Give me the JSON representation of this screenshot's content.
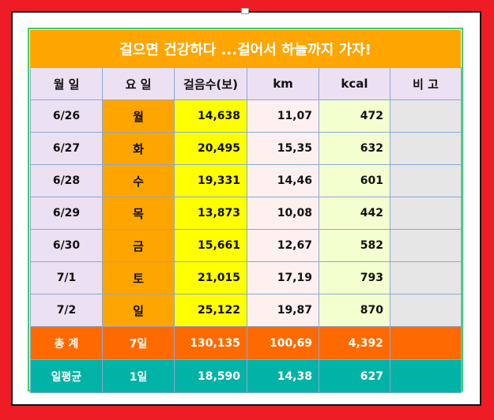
{
  "title": "걸으면 건강하다 ...걸어서 하늘까지 가자!",
  "headers": [
    "월 일",
    "요 일",
    "걸음수(보)",
    "km",
    "kcal",
    "비 고"
  ],
  "rows": [
    {
      "date": "6/26",
      "day": "월",
      "steps": "14,638",
      "km": "11,07",
      "kcal": "472",
      "note": ""
    },
    {
      "date": "6/27",
      "day": "화",
      "steps": "20,495",
      "km": "15,35",
      "kcal": "632",
      "note": ""
    },
    {
      "date": "6/28",
      "day": "수",
      "steps": "19,331",
      "km": "14,46",
      "kcal": "601",
      "note": ""
    },
    {
      "date": "6/29",
      "day": "목",
      "steps": "13,873",
      "km": "10,08",
      "kcal": "442",
      "note": ""
    },
    {
      "date": "6/30",
      "day": "금",
      "steps": "15,661",
      "km": "12,67",
      "kcal": "582",
      "note": ""
    },
    {
      "date": "7/1",
      "day": "토",
      "steps": "21,015",
      "km": "17,19",
      "kcal": "793",
      "note": ""
    },
    {
      "date": "7/2",
      "day": "일",
      "steps": "25,122",
      "km": "19,87",
      "kcal": "870",
      "note": ""
    }
  ],
  "total": {
    "label": "총 계",
    "days": "7일",
    "steps": "130,135",
    "km": "100,69",
    "kcal": "4,392",
    "note": ""
  },
  "average": {
    "label": "일평균",
    "days": "1일",
    "steps": "18,590",
    "km": "14,38",
    "kcal": "627",
    "note": ""
  },
  "colors": {
    "background": "#ee1c25",
    "title": "#ffa500",
    "header": "#ece0f3",
    "day": "#ffa500",
    "steps": "#ffff00",
    "total": "#ff6a00",
    "average": "#00b3a4"
  }
}
